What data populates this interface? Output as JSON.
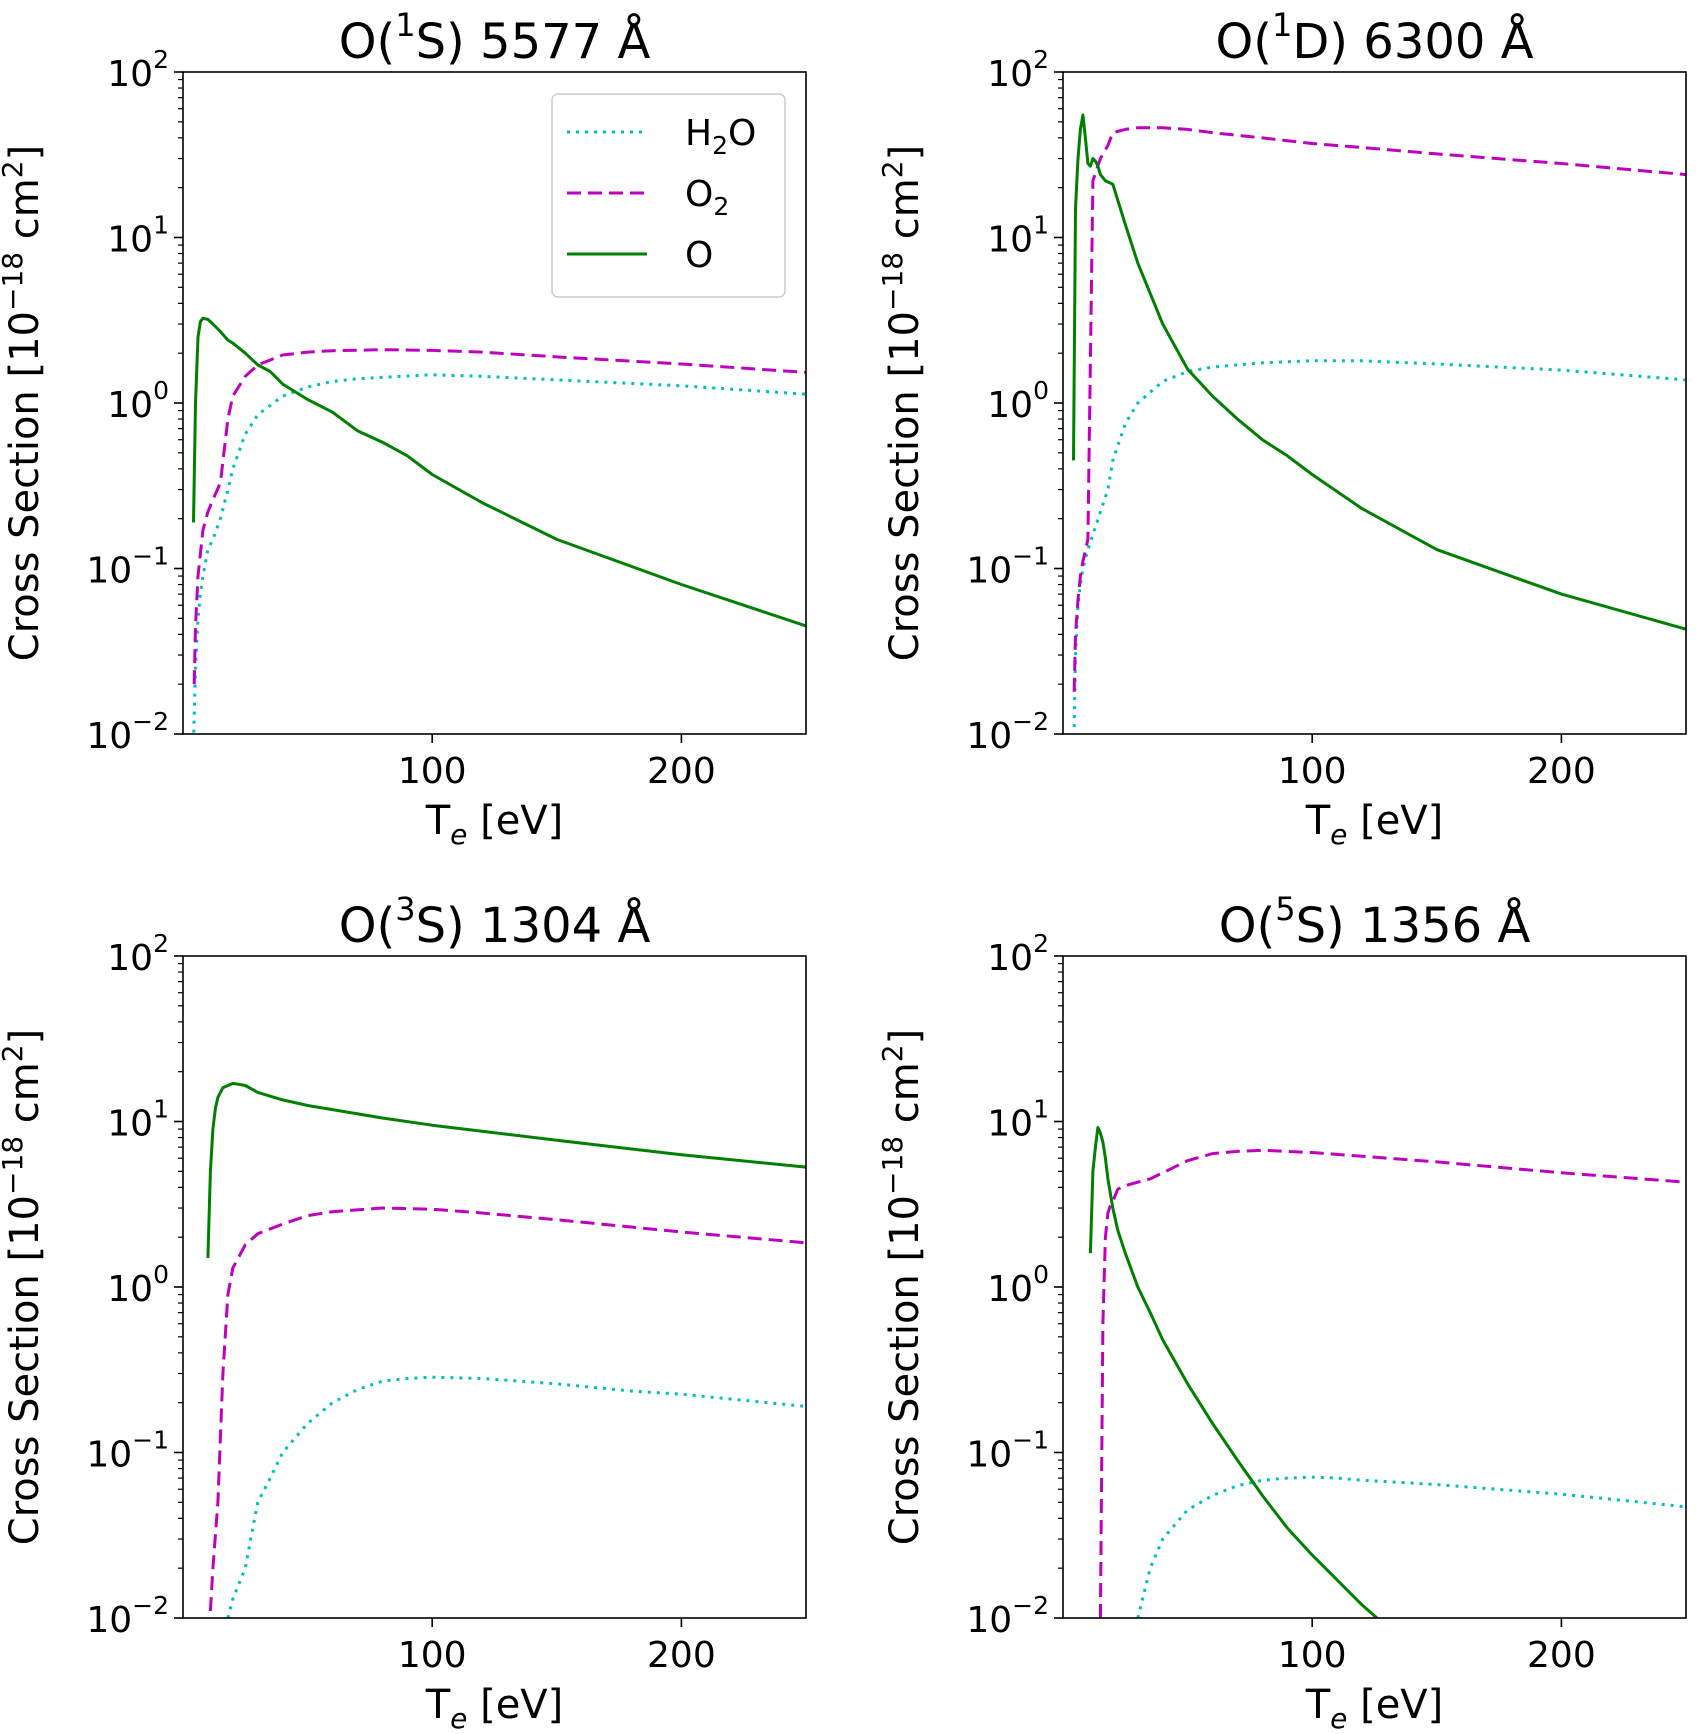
{
  "figure": {
    "xlabel": {
      "main": "T",
      "sub": "e",
      "tail": " [eV]"
    },
    "ylabel": {
      "pre": "Cross Section [10",
      "exp": "−18",
      "mid": " cm",
      "exp2": "2",
      "tail": "]"
    },
    "x_ticks": [
      "100",
      "200"
    ],
    "y_ticks": [
      {
        "base": "10",
        "exp": "−2"
      },
      {
        "base": "10",
        "exp": "−1"
      },
      {
        "base": "10",
        "exp": "0"
      },
      {
        "base": "10",
        "exp": "1"
      },
      {
        "base": "10",
        "exp": "2"
      }
    ],
    "legend": {
      "entries": [
        {
          "pre": "H",
          "sub": "2",
          "post": "O"
        },
        {
          "pre": "O",
          "sub": "2",
          "post": ""
        },
        {
          "pre": "O",
          "sub": "",
          "post": ""
        }
      ]
    },
    "colors": {
      "H2O": "#00bfbf",
      "O2": "#bf00bf",
      "O": "#008000"
    }
  },
  "chart_data": [
    {
      "type": "line",
      "title": {
        "pre": "O(",
        "sup": "1",
        "post": "S) 5577 Å"
      },
      "xlabel": "Te [eV]",
      "ylabel": "Cross Section [10^-18 cm^2]",
      "xlim": [
        0,
        250
      ],
      "ylim": [
        0.01,
        100
      ],
      "yscale": "log",
      "legend": "top-right",
      "series": [
        {
          "name": "H2O",
          "style": "dotted",
          "x": [
            4.2,
            5,
            6,
            7,
            8,
            10,
            12,
            15,
            18,
            20,
            25,
            30,
            40,
            50,
            60,
            70,
            80,
            100,
            120,
            150,
            200,
            250
          ],
          "y": [
            0.009,
            0.025,
            0.05,
            0.07,
            0.09,
            0.13,
            0.15,
            0.2,
            0.3,
            0.4,
            0.65,
            0.85,
            1.1,
            1.25,
            1.35,
            1.4,
            1.43,
            1.48,
            1.45,
            1.38,
            1.27,
            1.13
          ]
        },
        {
          "name": "O2",
          "style": "dashed",
          "x": [
            4.5,
            5,
            6,
            8,
            10,
            12,
            15,
            18,
            20,
            25,
            30,
            40,
            50,
            60,
            80,
            100,
            120,
            150,
            200,
            250
          ],
          "y": [
            0.02,
            0.045,
            0.09,
            0.17,
            0.22,
            0.26,
            0.33,
            0.8,
            1.1,
            1.45,
            1.7,
            1.95,
            2.03,
            2.07,
            2.1,
            2.08,
            2.03,
            1.9,
            1.72,
            1.53
          ]
        },
        {
          "name": "O",
          "style": "solid",
          "x": [
            4.2,
            5,
            6,
            7,
            8,
            10,
            12,
            15,
            18,
            20,
            25,
            30,
            35,
            40,
            50,
            60,
            70,
            80,
            90,
            100,
            120,
            150,
            200,
            250
          ],
          "y": [
            0.19,
            1.0,
            2.5,
            3.1,
            3.25,
            3.2,
            3.0,
            2.7,
            2.4,
            2.3,
            2.0,
            1.7,
            1.55,
            1.3,
            1.05,
            0.88,
            0.68,
            0.58,
            0.48,
            0.37,
            0.25,
            0.15,
            0.08,
            0.045
          ]
        }
      ]
    },
    {
      "type": "line",
      "title": {
        "pre": "O(",
        "sup": "1",
        "post": "D) 6300 Å"
      },
      "xlabel": "Te [eV]",
      "ylabel": "Cross Section [10^-18 cm^2]",
      "xlim": [
        0,
        250
      ],
      "ylim": [
        0.01,
        100
      ],
      "yscale": "log",
      "series": [
        {
          "name": "H2O",
          "style": "dotted",
          "x": [
            4.5,
            5,
            6,
            7,
            8,
            10,
            12,
            15,
            18,
            20,
            25,
            30,
            40,
            50,
            60,
            80,
            100,
            120,
            150,
            200,
            250
          ],
          "y": [
            0.011,
            0.03,
            0.06,
            0.08,
            0.1,
            0.13,
            0.16,
            0.22,
            0.3,
            0.45,
            0.75,
            1.0,
            1.35,
            1.55,
            1.65,
            1.75,
            1.8,
            1.8,
            1.72,
            1.58,
            1.38
          ]
        },
        {
          "name": "O2",
          "style": "dashed",
          "x": [
            4.5,
            5,
            6,
            7,
            8,
            10,
            12,
            15,
            18,
            20,
            25,
            30,
            40,
            50,
            60,
            80,
            100,
            120,
            150,
            200,
            250
          ],
          "y": [
            0.018,
            0.04,
            0.065,
            0.09,
            0.11,
            0.15,
            22,
            30,
            36,
            43,
            45,
            46,
            46,
            45,
            43,
            40,
            37,
            35,
            32,
            28,
            24
          ]
        },
        {
          "name": "O",
          "style": "solid",
          "x": [
            4.2,
            5,
            6,
            7,
            8,
            9,
            10,
            11,
            12,
            13,
            14,
            15,
            17,
            20,
            25,
            30,
            40,
            50,
            60,
            70,
            80,
            90,
            100,
            120,
            150,
            200,
            250
          ],
          "y": [
            0.45,
            15,
            30,
            45,
            55,
            40,
            28,
            27,
            30,
            29,
            27,
            24,
            22,
            21,
            12,
            7.0,
            3.0,
            1.6,
            1.1,
            0.8,
            0.6,
            0.48,
            0.37,
            0.23,
            0.13,
            0.07,
            0.043
          ]
        }
      ]
    },
    {
      "type": "line",
      "title": {
        "pre": "O(",
        "sup": "3",
        "post": "S) 1304 Å"
      },
      "xlabel": "Te [eV]",
      "ylabel": "Cross Section [10^-18 cm^2]",
      "xlim": [
        0,
        250
      ],
      "ylim": [
        0.01,
        100
      ],
      "yscale": "log",
      "series": [
        {
          "name": "H2O",
          "style": "dotted",
          "x": [
            18,
            20,
            25,
            28,
            30,
            35,
            40,
            50,
            60,
            70,
            80,
            90,
            100,
            120,
            150,
            180,
            200,
            250
          ],
          "y": [
            0.01,
            0.013,
            0.02,
            0.035,
            0.05,
            0.07,
            0.1,
            0.15,
            0.2,
            0.24,
            0.27,
            0.28,
            0.285,
            0.28,
            0.26,
            0.235,
            0.225,
            0.19
          ]
        },
        {
          "name": "O2",
          "style": "dashed",
          "x": [
            11,
            12,
            14,
            16,
            18,
            20,
            25,
            30,
            40,
            50,
            60,
            80,
            100,
            120,
            150,
            200,
            250
          ],
          "y": [
            0.011,
            0.02,
            0.05,
            0.3,
            0.9,
            1.3,
            1.8,
            2.1,
            2.4,
            2.7,
            2.85,
            3.0,
            2.95,
            2.8,
            2.55,
            2.15,
            1.85
          ]
        },
        {
          "name": "O",
          "style": "solid",
          "x": [
            10,
            11,
            12,
            13,
            14,
            16,
            18,
            20,
            22,
            25,
            30,
            40,
            50,
            60,
            80,
            100,
            150,
            200,
            250
          ],
          "y": [
            1.5,
            5,
            9,
            12,
            14,
            16,
            16.5,
            17,
            16.8,
            16.5,
            15,
            13.5,
            12.5,
            11.8,
            10.5,
            9.5,
            7.7,
            6.3,
            5.3
          ]
        }
      ]
    },
    {
      "type": "line",
      "title": {
        "pre": "O(",
        "sup": "5",
        "post": "S) 1356 Å"
      },
      "xlabel": "Te [eV]",
      "ylabel": "Cross Section [10^-18 cm^2]",
      "xlim": [
        0,
        250
      ],
      "ylim": [
        0.01,
        100
      ],
      "yscale": "log",
      "series": [
        {
          "name": "H2O",
          "style": "dotted",
          "x": [
            30,
            35,
            40,
            50,
            60,
            70,
            80,
            90,
            100,
            110,
            120,
            150,
            200,
            250
          ],
          "y": [
            0.01,
            0.02,
            0.03,
            0.045,
            0.055,
            0.063,
            0.068,
            0.07,
            0.071,
            0.07,
            0.068,
            0.064,
            0.056,
            0.047
          ]
        },
        {
          "name": "O2",
          "style": "dashed",
          "x": [
            15,
            16,
            17,
            18,
            19,
            20,
            22,
            25,
            30,
            35,
            40,
            50,
            60,
            70,
            80,
            90,
            100,
            150,
            200,
            250
          ],
          "y": [
            0.01,
            0.6,
            2.0,
            2.8,
            3.1,
            3.3,
            3.9,
            4.1,
            4.3,
            4.5,
            4.9,
            5.8,
            6.4,
            6.6,
            6.7,
            6.6,
            6.5,
            5.7,
            4.9,
            4.3
          ]
        },
        {
          "name": "O",
          "style": "solid",
          "x": [
            11,
            12,
            13,
            14,
            15,
            16,
            17,
            18,
            20,
            22,
            25,
            30,
            35,
            40,
            50,
            60,
            70,
            80,
            90,
            100,
            110,
            120,
            126
          ],
          "y": [
            1.6,
            5,
            7,
            9.2,
            8.5,
            7.5,
            6,
            4.5,
            3,
            2.2,
            1.6,
            1.0,
            0.7,
            0.48,
            0.26,
            0.15,
            0.09,
            0.055,
            0.035,
            0.024,
            0.017,
            0.012,
            0.01
          ]
        }
      ]
    }
  ]
}
